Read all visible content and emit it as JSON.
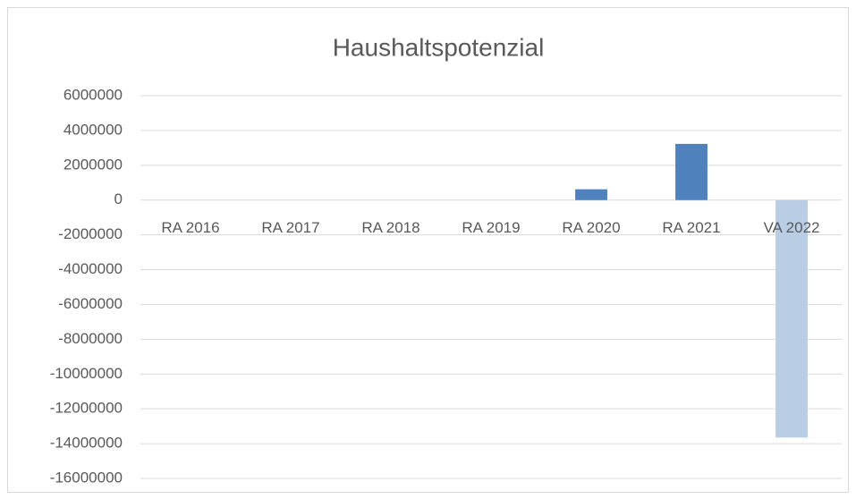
{
  "chart_data": {
    "type": "bar",
    "title": "Haushaltspotenzial",
    "categories": [
      "RA 2016",
      "RA 2017",
      "RA 2018",
      "RA 2019",
      "RA 2020",
      "RA 2021",
      "VA 2022"
    ],
    "values": [
      0,
      0,
      0,
      0,
      620000,
      3230000,
      -13650000
    ],
    "colors": [
      "#4f81bd",
      "#4f81bd",
      "#4f81bd",
      "#4f81bd",
      "#4f81bd",
      "#4f81bd",
      "#b9cde5"
    ],
    "ylim": [
      -16000000,
      6000000
    ],
    "yticks": [
      -16000000,
      -14000000,
      -12000000,
      -10000000,
      -8000000,
      -6000000,
      -4000000,
      -2000000,
      0,
      2000000,
      4000000,
      6000000
    ],
    "grid": true
  }
}
